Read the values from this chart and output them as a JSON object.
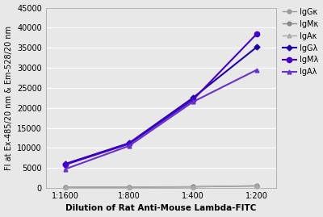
{
  "x_labels": [
    "1:1600",
    "1:800",
    "1:400",
    "1:200"
  ],
  "series": [
    {
      "name": "IgGκ",
      "values": [
        150,
        200,
        280,
        500
      ],
      "color": "#999999",
      "marker": "o",
      "linewidth": 1.0,
      "markersize": 3.5,
      "linestyle": "-"
    },
    {
      "name": "IgMκ",
      "values": [
        180,
        230,
        310,
        550
      ],
      "color": "#888888",
      "marker": "o",
      "linewidth": 1.0,
      "markersize": 3.5,
      "linestyle": "-"
    },
    {
      "name": "IgAκ",
      "values": [
        160,
        210,
        290,
        520
      ],
      "color": "#aaaaaa",
      "marker": "^",
      "linewidth": 1.0,
      "markersize": 3.5,
      "linestyle": "-"
    },
    {
      "name": "IgGλ",
      "values": [
        6000,
        11200,
        22500,
        35200
      ],
      "color": "#2200aa",
      "marker": "D",
      "linewidth": 1.5,
      "markersize": 3.5,
      "linestyle": "-"
    },
    {
      "name": "IgMλ",
      "values": [
        5800,
        11000,
        22000,
        38500
      ],
      "color": "#4400cc",
      "marker": "o",
      "linewidth": 1.5,
      "markersize": 4.5,
      "linestyle": "-"
    },
    {
      "name": "IgAλ",
      "values": [
        4700,
        10500,
        21500,
        29500
      ],
      "color": "#6633cc",
      "marker": "^",
      "linewidth": 1.5,
      "markersize": 3.5,
      "linestyle": "-"
    }
  ],
  "xlabel": "Dilution of Rat Anti-Mouse Lambda-FITC",
  "ylabel": "FI at Ex-485/20 nm & Em-528/20 nm",
  "ylim": [
    0,
    45000
  ],
  "yticks": [
    0,
    5000,
    10000,
    15000,
    20000,
    25000,
    30000,
    35000,
    40000,
    45000
  ],
  "background_color": "#e8e8e8",
  "plot_bg_color": "#e8e8e8",
  "grid_color": "#ffffff",
  "xlabel_fontsize": 7.5,
  "ylabel_fontsize": 7.0,
  "tick_fontsize": 7.0,
  "legend_fontsize": 7.0
}
